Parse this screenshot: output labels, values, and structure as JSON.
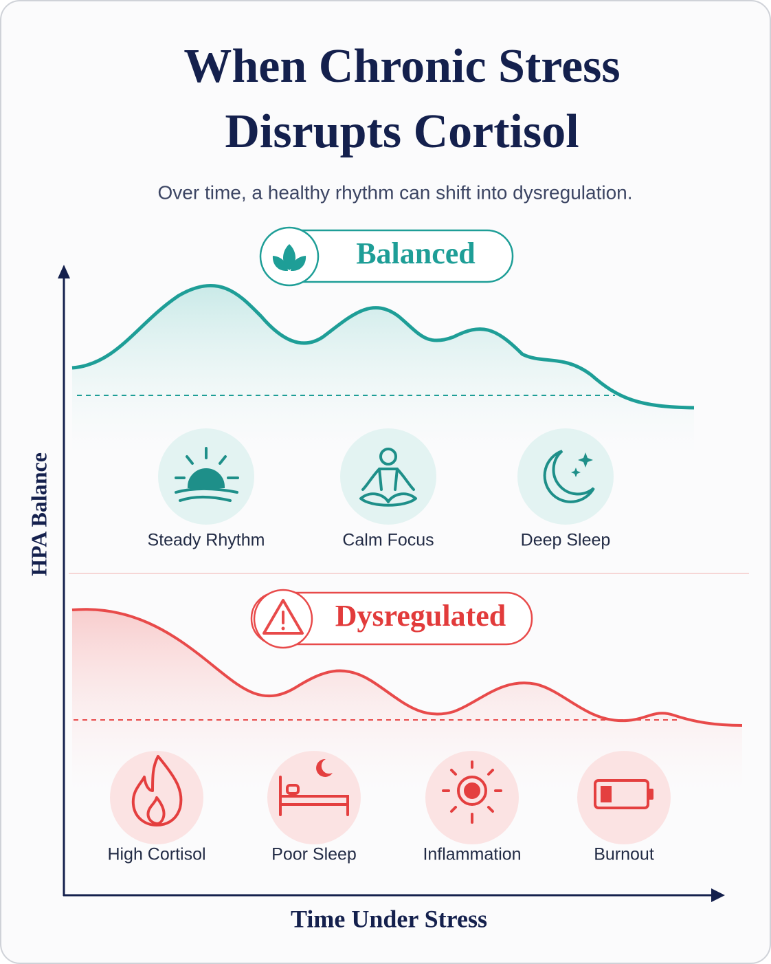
{
  "header": {
    "title_lines": [
      "When Chronic Stress",
      "Disrupts Cortisol"
    ],
    "subtitle": "Over time, a healthy rhythm can shift into dysregulation."
  },
  "axes": {
    "y_label": "HPA Balance",
    "x_label": "Time Under Stress"
  },
  "sections": [
    {
      "label": "Balanced",
      "items": [
        "Steady Rhythm",
        "Calm Focus",
        "Deep Sleep"
      ]
    },
    {
      "label": "Dysregulated",
      "items": [
        "High Cortisol",
        "Poor Sleep",
        "Inflammation",
        "Burnout"
      ]
    }
  ]
}
